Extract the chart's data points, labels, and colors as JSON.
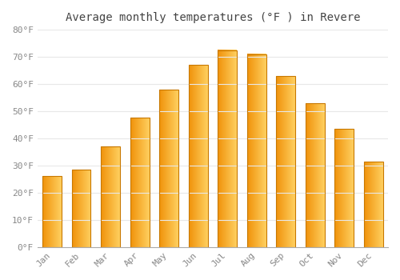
{
  "title": "Average monthly temperatures (°F ) in Revere",
  "months": [
    "Jan",
    "Feb",
    "Mar",
    "Apr",
    "May",
    "Jun",
    "Jul",
    "Aug",
    "Sep",
    "Oct",
    "Nov",
    "Dec"
  ],
  "values": [
    26,
    28.5,
    37,
    47.5,
    58,
    67,
    72.5,
    71,
    63,
    53,
    43.5,
    31.5
  ],
  "bar_color_left": "#F0920A",
  "bar_color_right": "#FFD060",
  "bar_edge_color": "#C87800",
  "background_color": "#ffffff",
  "grid_color": "#e8e8e8",
  "tick_label_color": "#888888",
  "title_color": "#444444",
  "ylim": [
    0,
    80
  ],
  "yticks": [
    0,
    10,
    20,
    30,
    40,
    50,
    60,
    70,
    80
  ],
  "ytick_labels": [
    "0°F",
    "10°F",
    "20°F",
    "30°F",
    "40°F",
    "50°F",
    "60°F",
    "70°F",
    "80°F"
  ]
}
